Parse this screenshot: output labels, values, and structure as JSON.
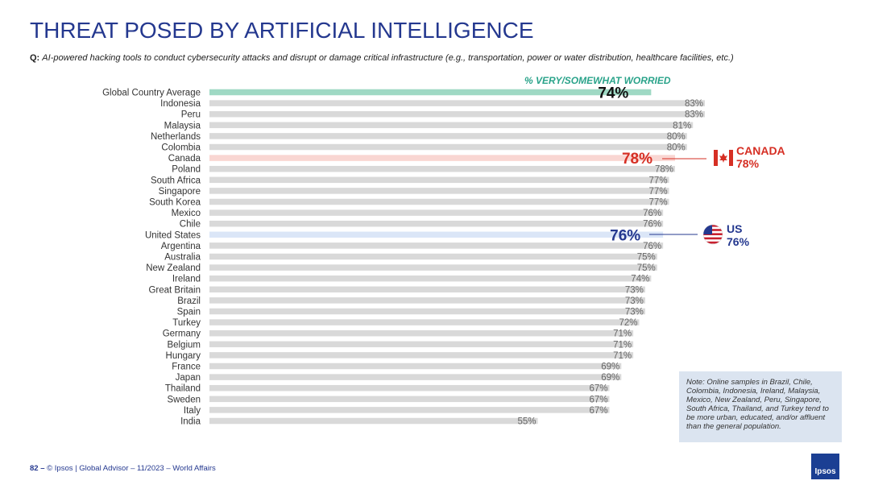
{
  "title": "THREAT POSED BY ARTIFICIAL INTELLIGENCE",
  "question": {
    "label": "Q:",
    "text": "AI-powered hacking tools to conduct cybersecurity attacks and disrupt or damage critical infrastructure (e.g., transportation, power or water distribution, healthcare facilities, etc.)"
  },
  "colors": {
    "title": "#24388f",
    "global_bar": "#9fd9c4",
    "default_bar": "#d9d9d9",
    "canada_bar": "#f9d6d2",
    "us_bar": "#dbe6f7",
    "canada_accent": "#d62f24",
    "us_accent": "#24388f"
  },
  "chart_data": {
    "type": "bar",
    "orientation": "horizontal",
    "title": "% VERY/SOMEWHAT WORRIED",
    "categories": [
      "Global Country Average",
      "Indonesia",
      "Peru",
      "Malaysia",
      "Netherlands",
      "Colombia",
      "Canada",
      "Poland",
      "South Africa",
      "Singapore",
      "South Korea",
      "Mexico",
      "Chile",
      "United States",
      "Argentina",
      "Australia",
      "New Zealand",
      "Ireland",
      "Great Britain",
      "Brazil",
      "Spain",
      "Turkey",
      "Germany",
      "Belgium",
      "Hungary",
      "France",
      "Japan",
      "Thailand",
      "Sweden",
      "Italy",
      "India"
    ],
    "values": [
      74,
      83,
      83,
      81,
      80,
      80,
      78,
      78,
      77,
      77,
      77,
      76,
      76,
      76,
      76,
      75,
      75,
      74,
      73,
      73,
      73,
      72,
      71,
      71,
      71,
      69,
      69,
      67,
      67,
      67,
      55
    ],
    "value_labels": [
      "74%",
      "83%",
      "83%",
      "81%",
      "80%",
      "80%",
      "78%",
      "78%",
      "77%",
      "77%",
      "77%",
      "76%",
      "76%",
      "76%",
      "76%",
      "75%",
      "75%",
      "74%",
      "73%",
      "73%",
      "73%",
      "72%",
      "71%",
      "71%",
      "71%",
      "69%",
      "69%",
      "67%",
      "67%",
      "67%",
      "55%"
    ],
    "highlights": {
      "Global Country Average": "global",
      "Canada": "canada",
      "United States": "us"
    },
    "xlim": [
      0,
      100
    ]
  },
  "callouts": {
    "canada": {
      "name": "CANADA",
      "value": "78%",
      "flag": "canada-flag-icon"
    },
    "us": {
      "name": "US",
      "value": "76%",
      "flag": "us-flag-icon"
    }
  },
  "note": "Note: Online samples in Brazil, Chile, Colombia, Indonesia, Ireland, Malaysia, Mexico, New Zealand, Peru, Singapore, South Africa, Thailand, and Turkey tend to be more urban, educated, and/or affluent than the general population.",
  "footer": {
    "page": "82 –",
    "text": "© Ipsos | Global Advisor – 11/2023 – World Affairs"
  },
  "logo": "Ipsos"
}
